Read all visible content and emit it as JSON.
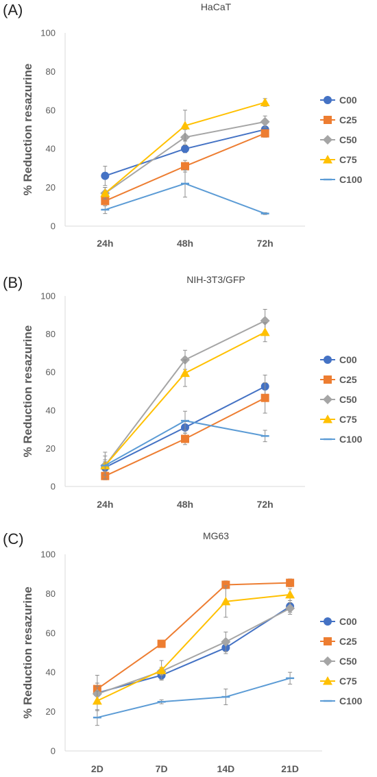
{
  "colors": {
    "C00": "#4472C4",
    "C25": "#ED7D31",
    "C50": "#A5A5A5",
    "C75": "#FFC000",
    "C100": "#5B9BD5",
    "axis": "#d9d9d9",
    "text": "#595959"
  },
  "chart_data": [
    {
      "panel": "(A)",
      "type": "line",
      "title": "HaCaT",
      "ylabel": "% Reduction resazurine",
      "xlabel": "",
      "categories": [
        "24h",
        "48h",
        "72h"
      ],
      "ylim": [
        0,
        100
      ],
      "yticks": [
        0,
        20,
        40,
        60,
        80,
        100
      ],
      "legend": "right",
      "series": [
        {
          "name": "C00",
          "marker": "circle",
          "values": [
            26,
            40,
            50
          ],
          "errors": [
            5,
            2,
            3
          ]
        },
        {
          "name": "C25",
          "marker": "square",
          "values": [
            13,
            31,
            48
          ],
          "errors": [
            2,
            3,
            2
          ]
        },
        {
          "name": "C50",
          "marker": "diamond",
          "values": [
            17,
            46,
            54
          ],
          "errors": [
            3,
            4,
            3
          ]
        },
        {
          "name": "C75",
          "marker": "triangle",
          "values": [
            17,
            52,
            64
          ],
          "errors": [
            3,
            8,
            2
          ]
        },
        {
          "name": "C100",
          "marker": "dash",
          "values": [
            8.5,
            22,
            6.5
          ],
          "errors": [
            2,
            7,
            0.5
          ]
        }
      ]
    },
    {
      "panel": "(B)",
      "type": "line",
      "title": "NIH-3T3/GFP",
      "ylabel": "% Reduction resazurine",
      "xlabel": "",
      "categories": [
        "24h",
        "48h",
        "72h"
      ],
      "ylim": [
        0,
        100
      ],
      "yticks": [
        0,
        20,
        40,
        60,
        80,
        100
      ],
      "legend": "right",
      "series": [
        {
          "name": "C00",
          "marker": "circle",
          "values": [
            10,
            31,
            52.5
          ],
          "errors": [
            3,
            3,
            6
          ]
        },
        {
          "name": "C25",
          "marker": "square",
          "values": [
            5.5,
            25,
            46.5
          ],
          "errors": [
            2,
            3,
            8
          ]
        },
        {
          "name": "C50",
          "marker": "diamond",
          "values": [
            11,
            66.5,
            87
          ],
          "errors": [
            5,
            5,
            6
          ]
        },
        {
          "name": "C75",
          "marker": "triangle",
          "values": [
            11,
            59.5,
            81
          ],
          "errors": [
            7,
            7,
            5
          ]
        },
        {
          "name": "C100",
          "marker": "dash",
          "values": [
            11,
            34.5,
            26.5
          ],
          "errors": [
            3,
            5,
            3
          ]
        }
      ]
    },
    {
      "panel": "(C)",
      "type": "line",
      "title": "MG63",
      "ylabel": "% Reduction resazurine",
      "xlabel": "",
      "categories": [
        "2D",
        "7D",
        "14D",
        "21D"
      ],
      "ylim": [
        0,
        100
      ],
      "yticks": [
        0,
        20,
        40,
        60,
        80,
        100
      ],
      "legend": "right",
      "series": [
        {
          "name": "C00",
          "marker": "circle",
          "values": [
            29.5,
            38.5,
            52.5,
            73.5
          ],
          "errors": [
            5,
            2,
            3,
            3
          ]
        },
        {
          "name": "C25",
          "marker": "square",
          "values": [
            31.5,
            54.5,
            84.5,
            85.5
          ],
          "errors": [
            7,
            1,
            2,
            2
          ]
        },
        {
          "name": "C50",
          "marker": "diamond",
          "values": [
            29,
            40.5,
            55.5,
            72.5
          ],
          "errors": [
            4,
            2,
            5,
            3
          ]
        },
        {
          "name": "C75",
          "marker": "triangle",
          "values": [
            25.5,
            41,
            76,
            79.5
          ],
          "errors": [
            5,
            5,
            8,
            3
          ]
        },
        {
          "name": "C100",
          "marker": "dash",
          "values": [
            17,
            25,
            27.5,
            37
          ],
          "errors": [
            4,
            1,
            4,
            3
          ]
        }
      ]
    }
  ]
}
